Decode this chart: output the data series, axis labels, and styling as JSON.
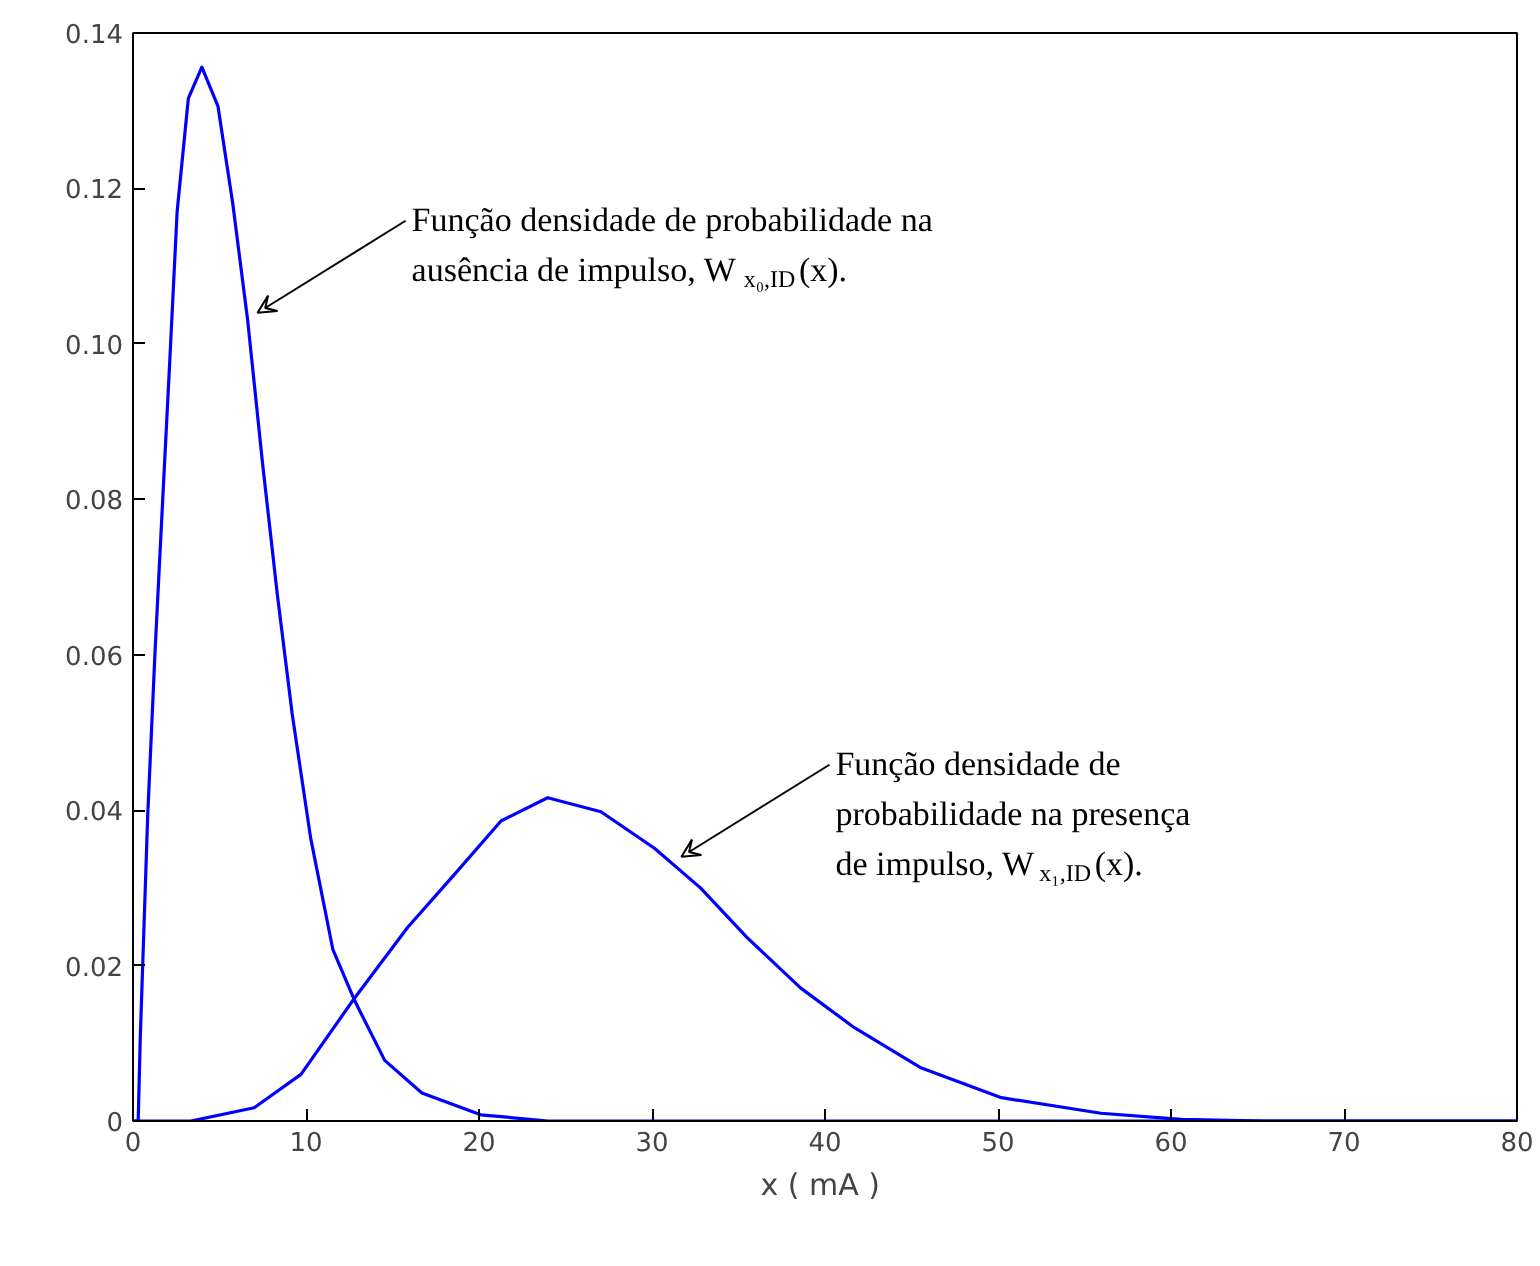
{
  "chart_data": {
    "type": "line",
    "xlabel": "x  ( mA )",
    "xlim": [
      0,
      80
    ],
    "xticks": [
      0,
      10,
      20,
      30,
      40,
      50,
      60,
      70,
      80
    ],
    "ylim": [
      0,
      0.14
    ],
    "yticks": [
      0,
      {
        "value": 0.02,
        "label": "0.02"
      },
      {
        "value": 0.04,
        "label": "0.04"
      },
      {
        "value": 0.06,
        "label": "0.06"
      },
      {
        "value": 0.08,
        "label": "0.08"
      },
      {
        "value": 0.1,
        "label": "0.10"
      },
      {
        "value": 0.12,
        "label": "0.12"
      },
      {
        "value": 0.14,
        "label": "0.14"
      }
    ],
    "grid": false,
    "marker": "none",
    "line_style": "solid",
    "series": [
      {
        "color": "#0000ff",
        "x": [
          0,
          0.3,
          0.42,
          0.85,
          1.27,
          1.7,
          2.13,
          2.55,
          3.2,
          3.98,
          4.91,
          5.77,
          6.63,
          7.48,
          8.34,
          9.2,
          10.27,
          11.55,
          12.83,
          14.55,
          16.7,
          20.1,
          24,
          80
        ],
        "values": [
          0,
          0,
          0.0107,
          0.0393,
          0.0602,
          0.0792,
          0.098,
          0.117,
          0.1316,
          0.1356,
          0.1306,
          0.118,
          0.103,
          0.0848,
          0.0678,
          0.0524,
          0.0364,
          0.0221,
          0.0154,
          0.0078,
          0.0036,
          0.0008,
          0,
          0
        ]
      },
      {
        "color": "#0000ff",
        "x": [
          0,
          3.35,
          7.0,
          9.71,
          12.8,
          15.87,
          18.57,
          21.27,
          23.97,
          27.05,
          30.14,
          32.8,
          35.5,
          38.6,
          41.7,
          45.5,
          50.2,
          55.95,
          60.6,
          65.5,
          80
        ],
        "values": [
          0,
          0,
          0.0017,
          0.006,
          0.0158,
          0.0249,
          0.0317,
          0.0386,
          0.0416,
          0.0398,
          0.0351,
          0.03,
          0.0236,
          0.0171,
          0.012,
          0.0069,
          0.003,
          0.001,
          0.0002,
          0,
          0
        ]
      }
    ],
    "annotations": [
      {
        "text": "Função densidade de probabilidade na\nausência de impulso, W$_{x₀,ID}$(x).",
        "x": 7.2,
        "y": 0.104
      },
      {
        "text": "Função densidade de\nprobabilidade na presença\nde impulso, W$_{x₁,ID}$(x).",
        "x": 31.7,
        "y": 0.034
      }
    ]
  }
}
